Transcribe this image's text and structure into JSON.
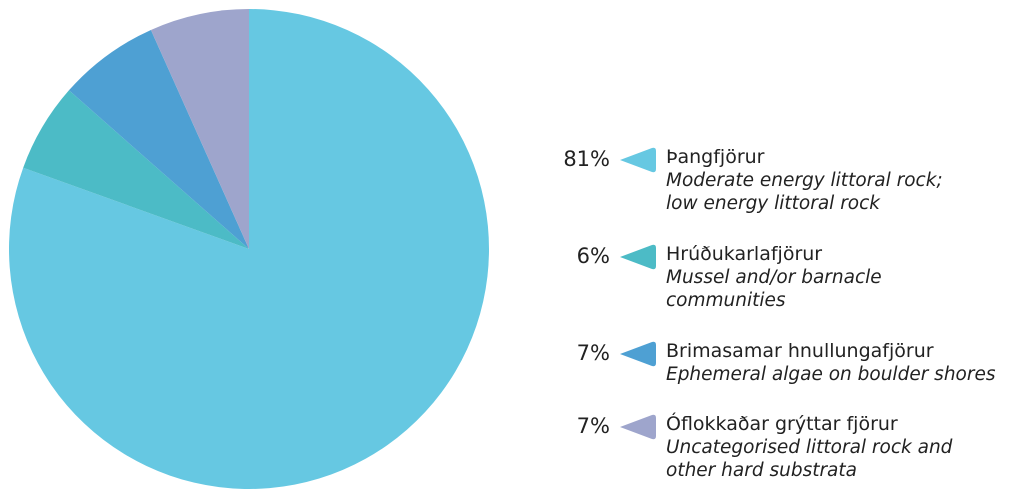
{
  "chart_data": {
    "type": "pie",
    "start_angle_deg": 0,
    "direction": "clockwise",
    "slices": [
      {
        "label": "Þangfjörur",
        "description": "Moderate energy littoral rock; low energy littoral rock",
        "percent_label": "81%",
        "value": 80.5,
        "color": "#66c8e2"
      },
      {
        "label": "Hrúðukarlafjörur",
        "description": "Mussel and/or barnacle communities",
        "percent_label": "6%",
        "value": 6.0,
        "color": "#4cbbc6"
      },
      {
        "label": "Brimasamar hnullungafjörur",
        "description": "Ephemeral algae on boulder shores",
        "percent_label": "7%",
        "value": 6.8,
        "color": "#4ea0d3"
      },
      {
        "label": "Óflokkaðar grýttar fjörur",
        "description": "Uncategorised littoral rock and other hard substrata",
        "percent_label": "7%",
        "value": 6.7,
        "color": "#9ea5cc"
      }
    ]
  },
  "legend": {
    "items": [
      {
        "pct": "81%",
        "name": "Þangfjörur",
        "desc_lines": [
          "Moderate energy littoral rock;",
          "low energy littoral rock"
        ],
        "color": "#66c8e2"
      },
      {
        "pct": "6%",
        "name": "Hrúðukarlafjörur",
        "desc_lines": [
          "Mussel and/or barnacle",
          "communities"
        ],
        "color": "#4cbbc6"
      },
      {
        "pct": "7%",
        "name": "Brimasamar hnullungafjörur",
        "desc_lines": [
          "Ephemeral algae on boulder shores"
        ],
        "color": "#4ea0d3"
      },
      {
        "pct": "7%",
        "name": "Óflokkaðar grýttar fjörur",
        "desc_lines": [
          "Uncategorised littoral rock and",
          "other hard substrata"
        ],
        "color": "#9ea5cc"
      }
    ]
  }
}
